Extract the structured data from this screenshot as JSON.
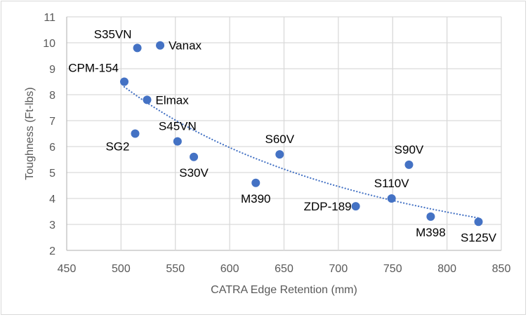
{
  "chart_data": {
    "type": "scatter",
    "title": "",
    "xlabel": "CATRA Edge Retention (mm)",
    "ylabel": "Toughness (Ft-lbs)",
    "xlim": [
      450,
      850
    ],
    "ylim": [
      2,
      11
    ],
    "xticks": [
      450,
      500,
      550,
      600,
      650,
      700,
      750,
      800,
      850
    ],
    "yticks": [
      2,
      3,
      4,
      5,
      6,
      7,
      8,
      9,
      10,
      11
    ],
    "grid": true,
    "legend": "none",
    "marker_color": "#4472c4",
    "points": [
      {
        "label": "CPM-154",
        "x": 503,
        "y": 8.5,
        "label_pos": "above-left"
      },
      {
        "label": "S35VN",
        "x": 515,
        "y": 9.8,
        "label_pos": "above-left"
      },
      {
        "label": "Vanax",
        "x": 536,
        "y": 9.9,
        "label_pos": "right"
      },
      {
        "label": "Elmax",
        "x": 524,
        "y": 7.8,
        "label_pos": "right"
      },
      {
        "label": "SG2",
        "x": 513,
        "y": 6.5,
        "label_pos": "below-left"
      },
      {
        "label": "S45VN",
        "x": 552,
        "y": 6.2,
        "label_pos": "above"
      },
      {
        "label": "S30V",
        "x": 567,
        "y": 5.6,
        "label_pos": "below"
      },
      {
        "label": "M390",
        "x": 624,
        "y": 4.6,
        "label_pos": "below"
      },
      {
        "label": "S60V",
        "x": 646,
        "y": 5.7,
        "label_pos": "above"
      },
      {
        "label": "ZDP-189",
        "x": 716,
        "y": 3.7,
        "label_pos": "left"
      },
      {
        "label": "S110V",
        "x": 749,
        "y": 4.0,
        "label_pos": "above"
      },
      {
        "label": "S90V",
        "x": 765,
        "y": 5.3,
        "label_pos": "above"
      },
      {
        "label": "M398",
        "x": 785,
        "y": 3.3,
        "label_pos": "below"
      },
      {
        "label": "S125V",
        "x": 829,
        "y": 3.1,
        "label_pos": "below"
      }
    ],
    "trendline": {
      "type": "power",
      "style": "dotted",
      "color": "#4472c4",
      "x_range": [
        503,
        829
      ],
      "y_at_start": 8.3,
      "y_at_end": 3.25
    }
  }
}
